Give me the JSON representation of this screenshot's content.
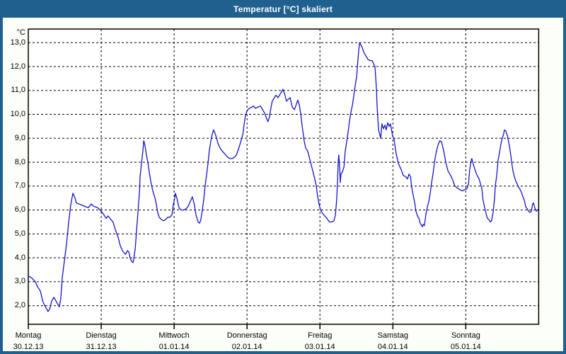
{
  "window": {
    "title": "Temperatur [°C] skaliert",
    "titlebar_color": "#1F608F",
    "border_color": "#1F608F",
    "content_bg": "#FCFFF7",
    "plot_bg": "#FFFFFF"
  },
  "chart_data": {
    "type": "line",
    "title": "Temperatur [°C] skaliert",
    "unit_label": "°C",
    "line_color": "#1414CC",
    "grid": "dashed-black",
    "legend": "none",
    "y_ticks": {
      "values": [
        13,
        12,
        11,
        10,
        9,
        8,
        7,
        6,
        5,
        4,
        3,
        2
      ],
      "labels": [
        "13,0",
        "12,0",
        "11,0",
        "10,0",
        "9,0",
        "8,0",
        "7,0",
        "6,0",
        "5,0",
        "4,0",
        "3,0",
        "2,0"
      ]
    },
    "y_axis_range": [
      1.2,
      13.6
    ],
    "x_range_hours": [
      0,
      168
    ],
    "x_days": [
      {
        "name": "Montag",
        "date": "30.12.13"
      },
      {
        "name": "Dienstag",
        "date": "31.12.13"
      },
      {
        "name": "Mittwoch",
        "date": "01.01.14"
      },
      {
        "name": "Donnerstag",
        "date": "02.01.14"
      },
      {
        "name": "Freitag",
        "date": "03.01.14"
      },
      {
        "name": "Samstag",
        "date": "04.01.14"
      },
      {
        "name": "Sonntag",
        "date": "05.01.14"
      }
    ],
    "series": [
      {
        "name": "Temperatur",
        "color": "#1414CC",
        "points": [
          [
            0,
            3.25
          ],
          [
            1.2,
            3.15
          ],
          [
            2.3,
            3.0
          ],
          [
            3.0,
            2.8
          ],
          [
            4.0,
            2.6
          ],
          [
            4.7,
            2.2
          ],
          [
            5.4,
            2.0
          ],
          [
            6.1,
            1.85
          ],
          [
            6.5,
            1.75
          ],
          [
            7.0,
            1.85
          ],
          [
            7.7,
            2.2
          ],
          [
            8.4,
            2.35
          ],
          [
            8.9,
            2.25
          ],
          [
            9.5,
            2.1
          ],
          [
            10.2,
            1.95
          ],
          [
            10.7,
            2.3
          ],
          [
            11.2,
            3.2
          ],
          [
            11.9,
            3.9
          ],
          [
            12.6,
            4.6
          ],
          [
            13.3,
            5.5
          ],
          [
            14.0,
            6.25
          ],
          [
            14.7,
            6.7
          ],
          [
            15.4,
            6.5
          ],
          [
            15.8,
            6.3
          ],
          [
            16.8,
            6.25
          ],
          [
            17.7,
            6.2
          ],
          [
            18.6,
            6.15
          ],
          [
            19.8,
            6.1
          ],
          [
            20.7,
            6.25
          ],
          [
            21.7,
            6.15
          ],
          [
            22.8,
            6.1
          ],
          [
            24.0,
            5.95
          ],
          [
            24.9,
            5.8
          ],
          [
            25.6,
            5.65
          ],
          [
            26.3,
            5.75
          ],
          [
            27.2,
            5.6
          ],
          [
            27.9,
            5.5
          ],
          [
            28.6,
            5.2
          ],
          [
            29.6,
            4.85
          ],
          [
            30.3,
            4.5
          ],
          [
            31.2,
            4.25
          ],
          [
            32.1,
            4.15
          ],
          [
            32.6,
            4.3
          ],
          [
            33.1,
            4.25
          ],
          [
            33.5,
            4.0
          ],
          [
            34.0,
            3.85
          ],
          [
            34.5,
            3.8
          ],
          [
            34.7,
            3.95
          ],
          [
            35.2,
            4.4
          ],
          [
            35.6,
            5.1
          ],
          [
            36.1,
            5.9
          ],
          [
            36.6,
            6.8
          ],
          [
            36.8,
            7.4
          ],
          [
            37.3,
            8.0
          ],
          [
            37.7,
            8.45
          ],
          [
            38.0,
            8.9
          ],
          [
            38.4,
            8.7
          ],
          [
            38.9,
            8.3
          ],
          [
            39.4,
            7.95
          ],
          [
            39.8,
            7.6
          ],
          [
            40.3,
            7.2
          ],
          [
            40.8,
            6.9
          ],
          [
            41.2,
            6.7
          ],
          [
            41.7,
            6.5
          ],
          [
            42.2,
            6.2
          ],
          [
            42.6,
            5.9
          ],
          [
            43.1,
            5.7
          ],
          [
            43.8,
            5.6
          ],
          [
            44.5,
            5.55
          ],
          [
            45.2,
            5.6
          ],
          [
            45.9,
            5.7
          ],
          [
            46.6,
            5.7
          ],
          [
            47.3,
            5.8
          ],
          [
            47.7,
            6.2
          ],
          [
            48.2,
            6.5
          ],
          [
            48.4,
            6.7
          ],
          [
            48.9,
            6.5
          ],
          [
            49.4,
            6.2
          ],
          [
            49.8,
            6.05
          ],
          [
            50.5,
            6.0
          ],
          [
            51.2,
            6.0
          ],
          [
            51.9,
            6.05
          ],
          [
            52.6,
            6.15
          ],
          [
            53.3,
            6.35
          ],
          [
            54.0,
            6.55
          ],
          [
            54.7,
            6.2
          ],
          [
            55.2,
            5.8
          ],
          [
            55.9,
            5.5
          ],
          [
            56.4,
            5.45
          ],
          [
            56.8,
            5.6
          ],
          [
            57.3,
            6.0
          ],
          [
            57.8,
            6.5
          ],
          [
            58.2,
            7.0
          ],
          [
            58.7,
            7.5
          ],
          [
            59.2,
            8.0
          ],
          [
            59.6,
            8.5
          ],
          [
            60.1,
            8.9
          ],
          [
            60.5,
            9.15
          ],
          [
            61.0,
            9.35
          ],
          [
            61.5,
            9.2
          ],
          [
            62.0,
            9.0
          ],
          [
            62.4,
            8.8
          ],
          [
            62.9,
            8.65
          ],
          [
            63.6,
            8.5
          ],
          [
            64.3,
            8.4
          ],
          [
            65.0,
            8.3
          ],
          [
            65.7,
            8.2
          ],
          [
            66.4,
            8.15
          ],
          [
            67.1,
            8.15
          ],
          [
            67.8,
            8.2
          ],
          [
            68.5,
            8.3
          ],
          [
            69.2,
            8.55
          ],
          [
            69.9,
            8.85
          ],
          [
            70.6,
            9.15
          ],
          [
            71.0,
            9.55
          ],
          [
            71.5,
            9.95
          ],
          [
            72.0,
            10.15
          ],
          [
            72.7,
            10.25
          ],
          [
            73.6,
            10.3
          ],
          [
            74.1,
            10.35
          ],
          [
            74.8,
            10.25
          ],
          [
            75.5,
            10.3
          ],
          [
            76.4,
            10.35
          ],
          [
            77.1,
            10.2
          ],
          [
            77.8,
            10.05
          ],
          [
            78.5,
            9.8
          ],
          [
            78.9,
            9.7
          ],
          [
            79.4,
            9.9
          ],
          [
            79.9,
            10.3
          ],
          [
            80.3,
            10.55
          ],
          [
            81.0,
            10.7
          ],
          [
            81.5,
            10.8
          ],
          [
            82.2,
            10.7
          ],
          [
            82.9,
            10.85
          ],
          [
            83.4,
            10.95
          ],
          [
            83.8,
            11.05
          ],
          [
            84.5,
            10.8
          ],
          [
            85.0,
            10.55
          ],
          [
            85.7,
            10.65
          ],
          [
            86.2,
            10.7
          ],
          [
            86.9,
            10.3
          ],
          [
            87.6,
            10.2
          ],
          [
            88.3,
            10.45
          ],
          [
            88.7,
            10.6
          ],
          [
            89.2,
            10.4
          ],
          [
            89.7,
            10.0
          ],
          [
            90.1,
            9.55
          ],
          [
            90.8,
            8.9
          ],
          [
            91.3,
            8.6
          ],
          [
            92.0,
            8.45
          ],
          [
            92.5,
            8.2
          ],
          [
            93.1,
            7.9
          ],
          [
            93.8,
            7.55
          ],
          [
            94.3,
            7.3
          ],
          [
            94.8,
            7.0
          ],
          [
            95.2,
            6.6
          ],
          [
            95.7,
            6.25
          ],
          [
            96.2,
            6.0
          ],
          [
            96.9,
            5.85
          ],
          [
            97.6,
            5.75
          ],
          [
            98.3,
            5.65
          ],
          [
            98.8,
            5.55
          ],
          [
            99.2,
            5.5
          ],
          [
            99.9,
            5.5
          ],
          [
            100.6,
            5.55
          ],
          [
            101.1,
            5.8
          ],
          [
            101.5,
            6.4
          ],
          [
            101.8,
            7.2
          ],
          [
            102.0,
            8.0
          ],
          [
            102.2,
            8.3
          ],
          [
            102.5,
            7.8
          ],
          [
            102.7,
            7.15
          ],
          [
            102.9,
            7.5
          ],
          [
            103.4,
            7.6
          ],
          [
            103.9,
            7.8
          ],
          [
            104.3,
            8.45
          ],
          [
            104.8,
            8.85
          ],
          [
            105.3,
            9.3
          ],
          [
            105.7,
            9.7
          ],
          [
            106.2,
            10.1
          ],
          [
            106.7,
            10.4
          ],
          [
            107.1,
            10.75
          ],
          [
            107.6,
            11.2
          ],
          [
            108.1,
            11.6
          ],
          [
            108.5,
            12.3
          ],
          [
            108.8,
            12.7
          ],
          [
            109.0,
            13.0
          ],
          [
            109.5,
            12.9
          ],
          [
            109.9,
            12.8
          ],
          [
            110.4,
            12.6
          ],
          [
            111.1,
            12.45
          ],
          [
            111.8,
            12.3
          ],
          [
            112.5,
            12.25
          ],
          [
            113.2,
            12.25
          ],
          [
            113.7,
            12.1
          ],
          [
            114.1,
            12.0
          ],
          [
            114.6,
            11.05
          ],
          [
            114.8,
            10.35
          ],
          [
            115.3,
            9.35
          ],
          [
            115.7,
            9.15
          ],
          [
            116.0,
            9.0
          ],
          [
            116.4,
            9.6
          ],
          [
            116.9,
            9.4
          ],
          [
            117.4,
            9.55
          ],
          [
            117.8,
            9.35
          ],
          [
            118.3,
            9.65
          ],
          [
            118.8,
            9.5
          ],
          [
            119.2,
            9.6
          ],
          [
            119.5,
            9.4
          ],
          [
            119.9,
            9.1
          ],
          [
            120.4,
            8.95
          ],
          [
            121.1,
            8.35
          ],
          [
            121.8,
            7.95
          ],
          [
            122.7,
            7.7
          ],
          [
            123.4,
            7.45
          ],
          [
            124.1,
            7.4
          ],
          [
            124.8,
            7.3
          ],
          [
            125.3,
            7.5
          ],
          [
            125.8,
            7.4
          ],
          [
            126.2,
            6.95
          ],
          [
            126.7,
            6.6
          ],
          [
            127.2,
            6.3
          ],
          [
            127.6,
            5.95
          ],
          [
            128.1,
            5.75
          ],
          [
            128.6,
            5.65
          ],
          [
            129.0,
            5.45
          ],
          [
            129.5,
            5.35
          ],
          [
            129.7,
            5.3
          ],
          [
            130.0,
            5.4
          ],
          [
            130.4,
            5.35
          ],
          [
            130.9,
            5.85
          ],
          [
            131.4,
            6.15
          ],
          [
            131.8,
            6.35
          ],
          [
            132.3,
            6.7
          ],
          [
            132.7,
            7.1
          ],
          [
            133.2,
            7.5
          ],
          [
            133.7,
            8.0
          ],
          [
            134.1,
            8.3
          ],
          [
            134.6,
            8.6
          ],
          [
            135.1,
            8.8
          ],
          [
            135.5,
            8.9
          ],
          [
            136.0,
            8.85
          ],
          [
            136.7,
            8.5
          ],
          [
            137.4,
            8.0
          ],
          [
            138.1,
            7.65
          ],
          [
            139.0,
            7.45
          ],
          [
            139.7,
            7.25
          ],
          [
            140.4,
            7.0
          ],
          [
            141.4,
            6.9
          ],
          [
            142.1,
            6.85
          ],
          [
            142.8,
            6.8
          ],
          [
            143.7,
            6.85
          ],
          [
            144.4,
            6.9
          ],
          [
            144.9,
            7.1
          ],
          [
            145.3,
            7.7
          ],
          [
            145.8,
            8.1
          ],
          [
            146.0,
            8.15
          ],
          [
            146.5,
            7.9
          ],
          [
            147.0,
            7.7
          ],
          [
            147.4,
            7.55
          ],
          [
            147.9,
            7.4
          ],
          [
            148.4,
            7.3
          ],
          [
            148.8,
            7.1
          ],
          [
            149.3,
            6.9
          ],
          [
            149.7,
            6.4
          ],
          [
            150.2,
            6.1
          ],
          [
            150.7,
            5.85
          ],
          [
            151.1,
            5.65
          ],
          [
            151.6,
            5.6
          ],
          [
            152.1,
            5.5
          ],
          [
            152.5,
            5.55
          ],
          [
            153.0,
            5.9
          ],
          [
            153.5,
            6.5
          ],
          [
            153.7,
            7.0
          ],
          [
            154.2,
            7.45
          ],
          [
            154.6,
            8.05
          ],
          [
            155.1,
            8.4
          ],
          [
            155.6,
            8.8
          ],
          [
            156.0,
            9.0
          ],
          [
            156.5,
            9.2
          ],
          [
            156.7,
            9.35
          ],
          [
            157.2,
            9.3
          ],
          [
            157.7,
            9.1
          ],
          [
            158.1,
            8.85
          ],
          [
            158.6,
            8.5
          ],
          [
            159.1,
            8.0
          ],
          [
            159.5,
            7.65
          ],
          [
            160.0,
            7.4
          ],
          [
            160.5,
            7.2
          ],
          [
            160.9,
            7.1
          ],
          [
            161.4,
            6.95
          ],
          [
            161.9,
            6.85
          ],
          [
            162.3,
            6.75
          ],
          [
            162.8,
            6.55
          ],
          [
            163.3,
            6.4
          ],
          [
            163.7,
            6.15
          ],
          [
            164.2,
            6.05
          ],
          [
            164.7,
            5.95
          ],
          [
            165.1,
            5.9
          ],
          [
            165.6,
            5.95
          ],
          [
            166.0,
            6.25
          ],
          [
            166.3,
            6.3
          ],
          [
            166.7,
            6.1
          ],
          [
            167.2,
            5.95
          ],
          [
            167.6,
            6.0
          ],
          [
            168.0,
            6.05
          ]
        ]
      }
    ]
  }
}
